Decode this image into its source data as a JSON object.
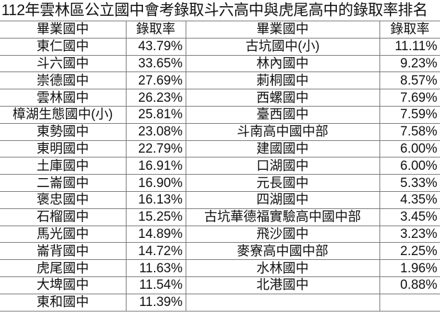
{
  "title": "112年雲林區公立國中會考錄取斗六高中與虎尾高中的錄取率排名",
  "headers": [
    "畢業國中",
    "錄取率",
    "畢業國中",
    "錄取率"
  ],
  "left": [
    {
      "school": "東仁國中",
      "rate": "43.79%"
    },
    {
      "school": "斗六國中",
      "rate": "33.65%"
    },
    {
      "school": "崇德國中",
      "rate": "27.69%"
    },
    {
      "school": "雲林國中",
      "rate": "26.23%"
    },
    {
      "school": "樟湖生態國中(小)",
      "rate": "25.81%"
    },
    {
      "school": "東勢國中",
      "rate": "23.08%"
    },
    {
      "school": "東明國中",
      "rate": "22.79%"
    },
    {
      "school": "土庫國中",
      "rate": "16.91%"
    },
    {
      "school": "二崙國中",
      "rate": "16.90%"
    },
    {
      "school": "褒忠國中",
      "rate": "16.13%"
    },
    {
      "school": "石榴國中",
      "rate": "15.25%"
    },
    {
      "school": "馬光國中",
      "rate": "14.89%"
    },
    {
      "school": "崙背國中",
      "rate": "14.72%"
    },
    {
      "school": "虎尾國中",
      "rate": "11.63%"
    },
    {
      "school": "大埤國中",
      "rate": "11.54%"
    },
    {
      "school": "東和國中",
      "rate": "11.39%"
    }
  ],
  "right": [
    {
      "school": "古坑國中(小)",
      "rate": "11.11%"
    },
    {
      "school": "林內國中",
      "rate": "9.23%"
    },
    {
      "school": "莿桐國中",
      "rate": "8.57%"
    },
    {
      "school": "西螺國中",
      "rate": "7.69%"
    },
    {
      "school": "臺西國中",
      "rate": "7.59%"
    },
    {
      "school": "斗南高中國中部",
      "rate": "7.58%"
    },
    {
      "school": "建國國中",
      "rate": "6.00%"
    },
    {
      "school": "口湖國中",
      "rate": "6.00%"
    },
    {
      "school": "元長國中",
      "rate": "5.33%"
    },
    {
      "school": "四湖國中",
      "rate": "4.35%"
    },
    {
      "school": "古坑華德福實驗高中國中部",
      "rate": "3.45%"
    },
    {
      "school": "飛沙國中",
      "rate": "3.23%"
    },
    {
      "school": "麥寮高中國中部",
      "rate": "2.25%"
    },
    {
      "school": "水林國中",
      "rate": "1.96%"
    },
    {
      "school": "北港國中",
      "rate": "0.88%"
    },
    {
      "school": "",
      "rate": ""
    }
  ]
}
